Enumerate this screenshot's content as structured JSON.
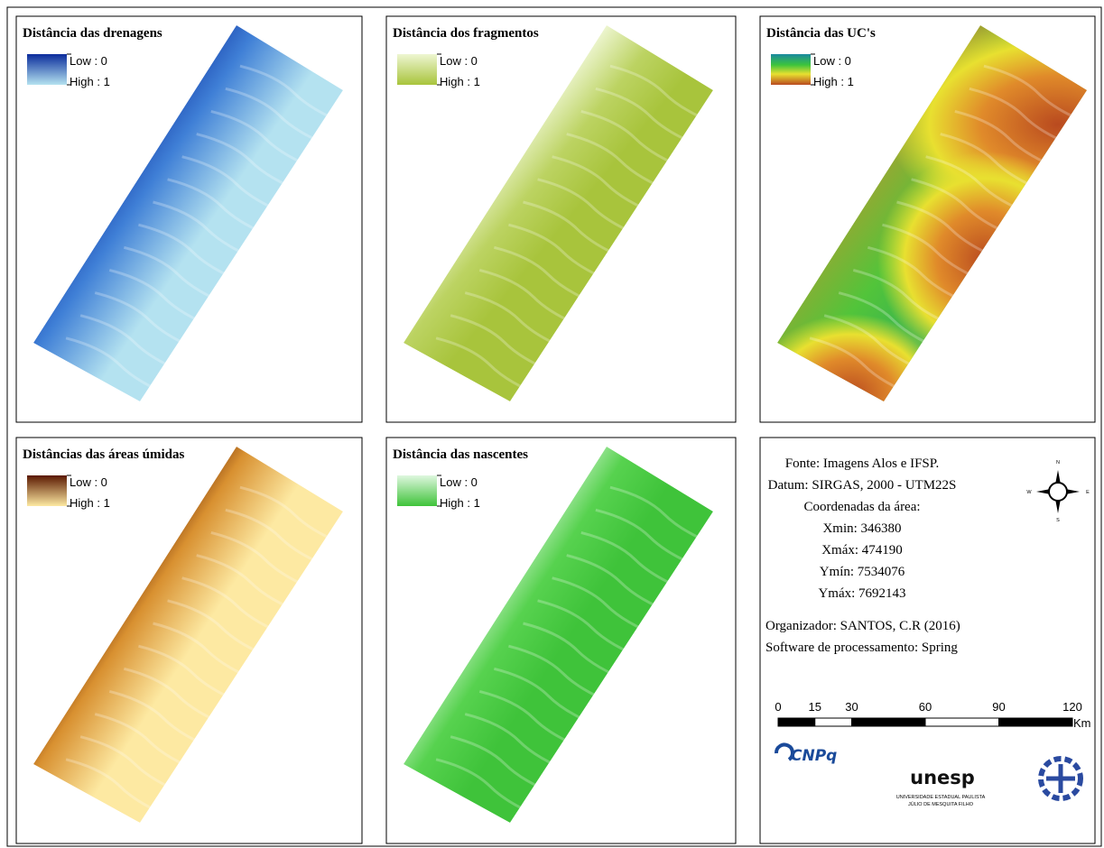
{
  "panels": [
    {
      "title": "Distância das drenagens",
      "legend": {
        "low": "Low : 0",
        "high": "High : 1"
      }
    },
    {
      "title": "Distância dos fragmentos",
      "legend": {
        "low": "Low : 0",
        "high": "High : 1"
      }
    },
    {
      "title": "Distância das UC's",
      "legend": {
        "low": "Low : 0",
        "high": "High : 1"
      }
    },
    {
      "title": "Distâncias das áreas úmidas",
      "legend": {
        "low": "Low : 0",
        "high": "High : 1"
      }
    },
    {
      "title": "Distância das nascentes",
      "legend": {
        "low": "Low : 0",
        "high": "High : 1"
      }
    }
  ],
  "info": {
    "centered": [
      "Fonte: Imagens Alos e IFSP.",
      "Datum: SIRGAS, 2000 - UTM22S",
      "Coordenadas da área:",
      "Xmin: 346380",
      "Xmáx: 474190",
      "Ymín: 7534076",
      "Ymáx: 7692143"
    ],
    "left": [
      "Organizador: SANTOS, C.R (2016)",
      "Software de processamento: Spring"
    ]
  },
  "scale_bar": {
    "ticks": [
      0,
      15,
      30,
      60,
      90,
      120
    ],
    "unit": "Km"
  },
  "compass": {
    "n": "N",
    "e": "E",
    "s": "S",
    "w": "W"
  },
  "logos": {
    "cnpq": "CNPq",
    "unesp": "unesp",
    "unesp_line1": "UNIVERSIDADE ESTADUAL PAULISTA",
    "unesp_line2": "JÚLIO DE MESQUITA FILHO"
  }
}
